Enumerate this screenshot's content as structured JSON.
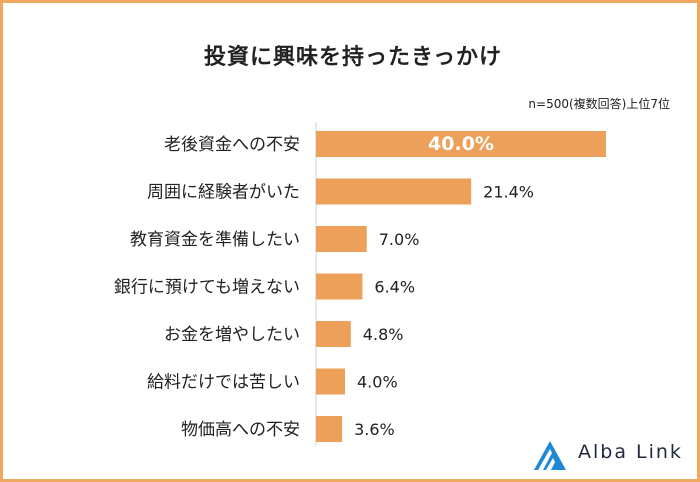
{
  "title": "投資に興味を持ったきっかけ",
  "note": "n=500(複数回答)上位7位",
  "logo_text": "Alba Link",
  "colors": {
    "bar": "#eda05a",
    "border": "#f0a860",
    "axis": "#cfcfcf",
    "logo": "#1e88d6"
  },
  "chart_data": {
    "type": "bar",
    "orientation": "horizontal",
    "categories": [
      "老後資金への不安",
      "周囲に経験者がいた",
      "教育資金を準備したい",
      "銀行に預けても増えない",
      "お金を増やしたい",
      "給料だけでは苦しい",
      "物価高への不安"
    ],
    "values": [
      40.0,
      21.4,
      7.0,
      6.4,
      4.8,
      4.0,
      3.6
    ],
    "value_labels": [
      "40.0%",
      "21.4%",
      "7.0%",
      "6.4%",
      "4.8%",
      "4.0%",
      "3.6%"
    ],
    "unit": "%",
    "xlim": [
      0,
      40
    ],
    "grid": false,
    "legend": "none"
  }
}
